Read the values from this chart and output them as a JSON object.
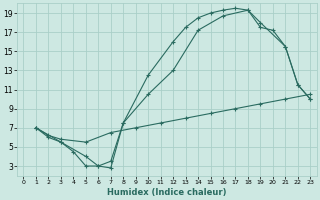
{
  "xlabel": "Humidex (Indice chaleur)",
  "bg_color": "#cde8e2",
  "grid_color": "#aacfc8",
  "line_color": "#2a6b60",
  "xlim": [
    -0.5,
    23.5
  ],
  "ylim": [
    2.0,
    20.0
  ],
  "xticks": [
    0,
    1,
    2,
    3,
    4,
    5,
    6,
    7,
    8,
    9,
    10,
    11,
    12,
    13,
    14,
    15,
    16,
    17,
    18,
    19,
    20,
    21,
    22,
    23
  ],
  "yticks": [
    3,
    5,
    7,
    9,
    11,
    13,
    15,
    17,
    19
  ],
  "line1_x": [
    1,
    2,
    3,
    4,
    5,
    6,
    7,
    8,
    10,
    12,
    13,
    14,
    15,
    16,
    17,
    18,
    19,
    21,
    22,
    23
  ],
  "line1_y": [
    7,
    6,
    5.5,
    4.5,
    3,
    3,
    2.8,
    7.5,
    12.5,
    16,
    17.5,
    18.5,
    19.0,
    19.3,
    19.5,
    19.3,
    18.0,
    15.5,
    11.5,
    10.0
  ],
  "line2_x": [
    1,
    3,
    5,
    6,
    7,
    8,
    10,
    12,
    14,
    16,
    18,
    19,
    20,
    21,
    22,
    23
  ],
  "line2_y": [
    7,
    5.5,
    4.0,
    3.0,
    3.5,
    7.5,
    10.5,
    13.0,
    17.2,
    18.7,
    19.3,
    17.5,
    17.2,
    15.5,
    11.5,
    10.0
  ],
  "line3_x": [
    1,
    2,
    3,
    5,
    7,
    9,
    11,
    13,
    15,
    17,
    19,
    21,
    23
  ],
  "line3_y": [
    7,
    6.2,
    5.8,
    5.5,
    6.5,
    7.0,
    7.5,
    8.0,
    8.5,
    9.0,
    9.5,
    10.0,
    10.5
  ],
  "marker": "+"
}
